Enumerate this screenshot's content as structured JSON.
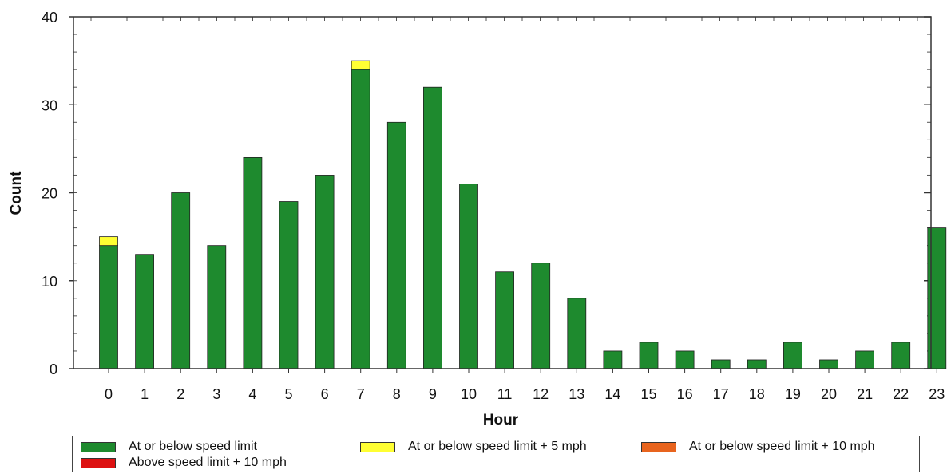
{
  "chart_data": {
    "type": "bar",
    "stacked": true,
    "xlabel": "Hour",
    "ylabel": "Count",
    "ylim": [
      0,
      40
    ],
    "yticks": [
      0,
      10,
      20,
      30,
      40
    ],
    "categories": [
      "0",
      "1",
      "2",
      "3",
      "4",
      "5",
      "6",
      "7",
      "8",
      "9",
      "10",
      "11",
      "12",
      "13",
      "14",
      "15",
      "16",
      "17",
      "18",
      "19",
      "20",
      "21",
      "22",
      "23"
    ],
    "series": [
      {
        "name": "At or below speed limit",
        "color": "#1e8a2e",
        "values": [
          14,
          13,
          20,
          14,
          24,
          19,
          22,
          34,
          28,
          32,
          21,
          11,
          12,
          8,
          2,
          3,
          2,
          1,
          1,
          3,
          1,
          2,
          3,
          16
        ]
      },
      {
        "name": "At or below speed limit + 5 mph",
        "color": "#ffff33",
        "values": [
          1,
          0,
          0,
          0,
          0,
          0,
          0,
          1,
          0,
          0,
          0,
          0,
          0,
          0,
          0,
          0,
          0,
          0,
          0,
          0,
          0,
          0,
          0,
          0
        ]
      },
      {
        "name": "At or below speed limit + 10 mph",
        "color": "#e8641e",
        "values": [
          0,
          0,
          0,
          0,
          0,
          0,
          0,
          0,
          0,
          0,
          0,
          0,
          0,
          0,
          0,
          0,
          0,
          0,
          0,
          0,
          0,
          0,
          0,
          0
        ]
      },
      {
        "name": "Above speed limit + 10 mph",
        "color": "#dd1111",
        "values": [
          0,
          0,
          0,
          0,
          0,
          0,
          0,
          0,
          0,
          0,
          0,
          0,
          0,
          0,
          0,
          0,
          0,
          0,
          0,
          0,
          0,
          0,
          0,
          0
        ]
      }
    ],
    "legend_position": "bottom",
    "grid": false
  }
}
